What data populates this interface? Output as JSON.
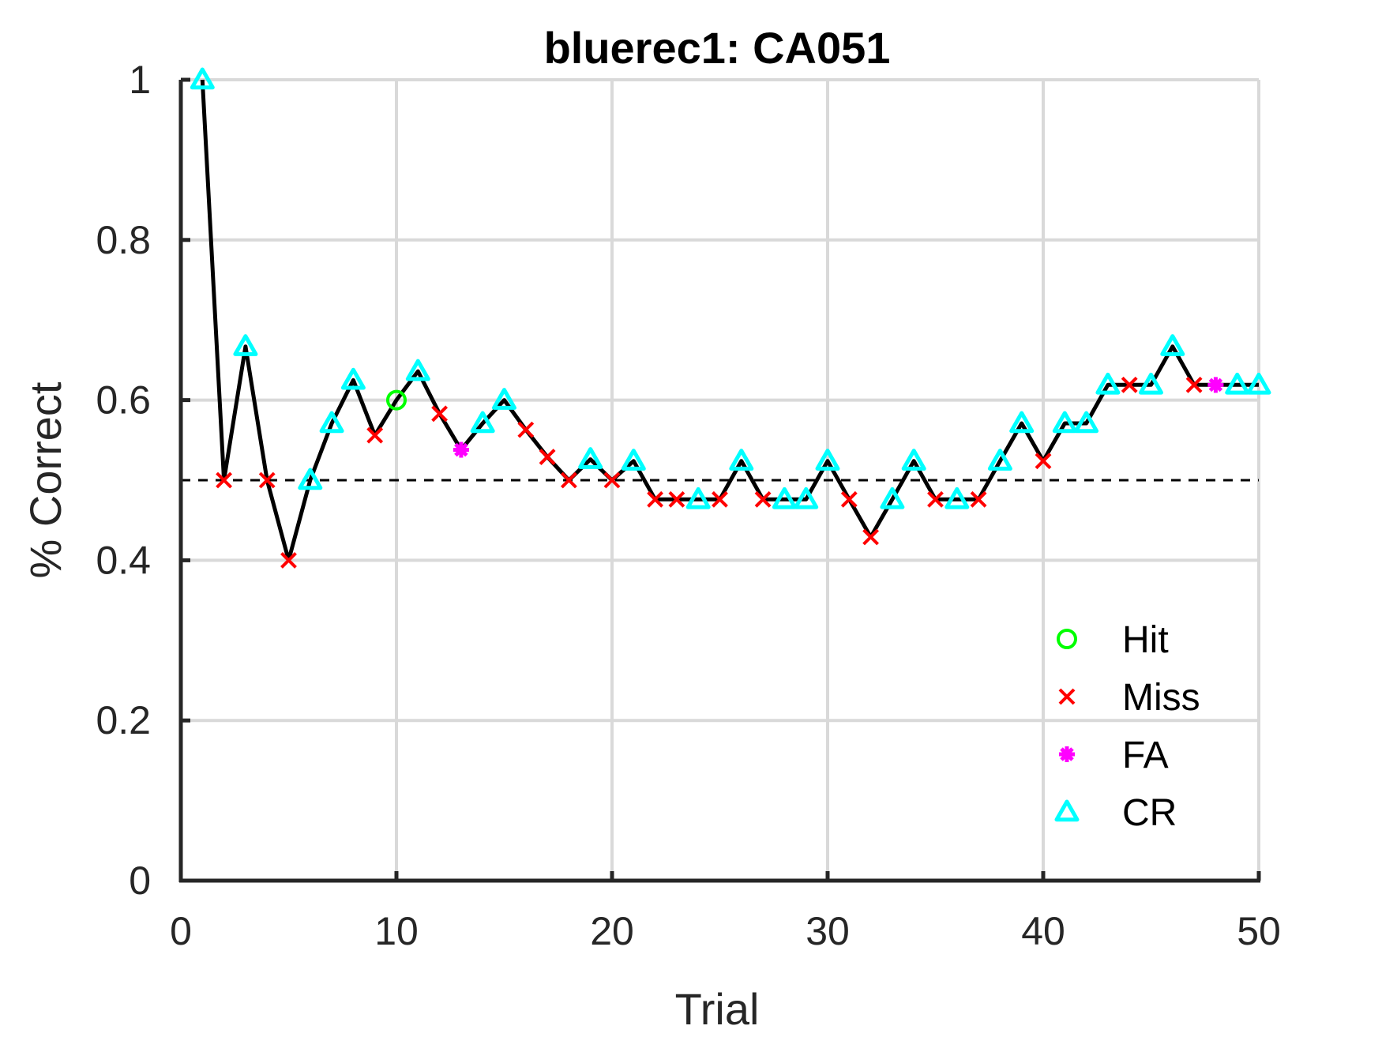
{
  "chart_data": {
    "type": "line",
    "title": "bluerec1: CA051",
    "xlabel": "Trial",
    "ylabel": "% Correct",
    "xlim": [
      0,
      50
    ],
    "ylim": [
      0,
      1
    ],
    "xticks": [
      0,
      10,
      20,
      30,
      40,
      50
    ],
    "yticks": [
      0,
      0.2,
      0.4,
      0.6,
      0.8,
      1
    ],
    "xtick_labels": [
      "0",
      "10",
      "20",
      "30",
      "40",
      "50"
    ],
    "ytick_labels": [
      "0",
      "0.2",
      "0.4",
      "0.6",
      "0.8",
      "1"
    ],
    "grid": true,
    "reference_line": {
      "y": 0.5,
      "style": "dashed",
      "color": "#000000"
    },
    "line": {
      "color": "#000000",
      "x": [
        1,
        2,
        3,
        4,
        5,
        6,
        7,
        8,
        9,
        10,
        11,
        12,
        13,
        14,
        15,
        16,
        17,
        18,
        19,
        20,
        21,
        22,
        23,
        24,
        25,
        26,
        27,
        28,
        29,
        30,
        31,
        32,
        33,
        34,
        35,
        36,
        37,
        38,
        39,
        40,
        41,
        42,
        43,
        44,
        45,
        46,
        47,
        48,
        49,
        50
      ],
      "y": [
        1.0,
        0.5,
        0.667,
        0.5,
        0.4,
        0.5,
        0.571,
        0.625,
        0.556,
        0.6,
        0.636,
        0.583,
        0.538,
        0.571,
        0.6,
        0.563,
        0.529,
        0.5,
        0.526,
        0.5,
        0.524,
        0.476,
        0.476,
        0.476,
        0.476,
        0.524,
        0.476,
        0.476,
        0.476,
        0.524,
        0.476,
        0.429,
        0.476,
        0.524,
        0.476,
        0.476,
        0.476,
        0.524,
        0.571,
        0.524,
        0.571,
        0.571,
        0.619,
        0.619,
        0.619,
        0.667,
        0.619,
        0.619,
        0.619,
        0.619
      ]
    },
    "series": [
      {
        "name": "Hit",
        "marker": "circle",
        "color": "#00ff00",
        "x": [
          10
        ],
        "y": [
          0.6
        ]
      },
      {
        "name": "Miss",
        "marker": "x",
        "color": "#ff0000",
        "x": [
          2,
          4,
          5,
          9,
          12,
          16,
          17,
          18,
          20,
          22,
          23,
          25,
          27,
          31,
          32,
          35,
          37,
          40,
          44,
          47
        ],
        "y": [
          0.5,
          0.5,
          0.4,
          0.556,
          0.583,
          0.563,
          0.529,
          0.5,
          0.5,
          0.476,
          0.476,
          0.476,
          0.476,
          0.476,
          0.429,
          0.476,
          0.476,
          0.524,
          0.619,
          0.619
        ]
      },
      {
        "name": "FA",
        "marker": "asterisk",
        "color": "#ff00ff",
        "x": [
          13,
          48
        ],
        "y": [
          0.538,
          0.619
        ]
      },
      {
        "name": "CR",
        "marker": "triangle",
        "color": "#00ffff",
        "x": [
          1,
          3,
          6,
          7,
          8,
          11,
          14,
          15,
          19,
          21,
          24,
          26,
          28,
          29,
          30,
          33,
          34,
          36,
          38,
          39,
          41,
          42,
          43,
          45,
          46,
          49,
          50
        ],
        "y": [
          1.0,
          0.667,
          0.5,
          0.571,
          0.625,
          0.636,
          0.571,
          0.6,
          0.526,
          0.524,
          0.476,
          0.524,
          0.476,
          0.476,
          0.524,
          0.476,
          0.524,
          0.476,
          0.524,
          0.571,
          0.571,
          0.571,
          0.619,
          0.619,
          0.667,
          0.619,
          0.619
        ]
      }
    ],
    "legend_position": "bottom-right"
  }
}
